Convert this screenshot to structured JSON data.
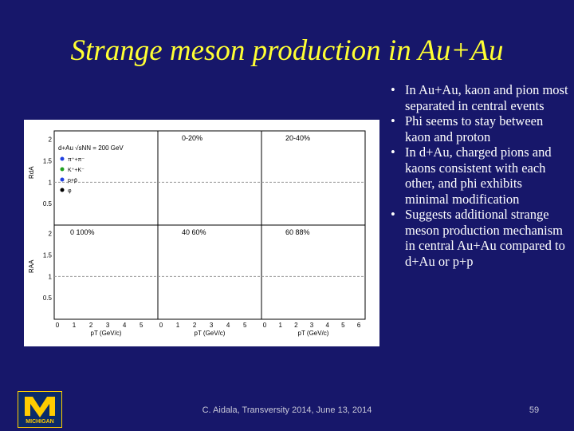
{
  "slide": {
    "title": "Strange meson production in Au+Au",
    "bullets": [
      "In Au+Au, kaon and pion most separated in central events",
      "Phi seems to stay between kaon and proton",
      "In d+Au, charged pions and kaons consistent with each other, and phi exhibits minimal modification",
      "Suggests additional strange meson production mechanism in central Au+Au compared to d+Au or p+p"
    ],
    "footer": "C. Aidala, Transversity 2014, June 13, 2014",
    "page_number": "59",
    "logo_text": "MICHIGAN",
    "figure": {
      "legend_title": "d+Au √sNN = 200 GeV",
      "legend": [
        "π⁺+π⁻",
        "K⁺+K⁻",
        "p+p̄",
        "φ"
      ],
      "y_label_top": "RdA",
      "y_label_bottom": "RAA",
      "x_label": "pT (GeV/c)",
      "panels": [
        "0-20%",
        "20-40%",
        "0 100%",
        "40 60%",
        "60 88%"
      ],
      "yticks": [
        "0.5",
        "1",
        "1.5",
        "2"
      ],
      "xticks": [
        "0",
        "1",
        "2",
        "3",
        "4",
        "5",
        "6"
      ]
    }
  }
}
